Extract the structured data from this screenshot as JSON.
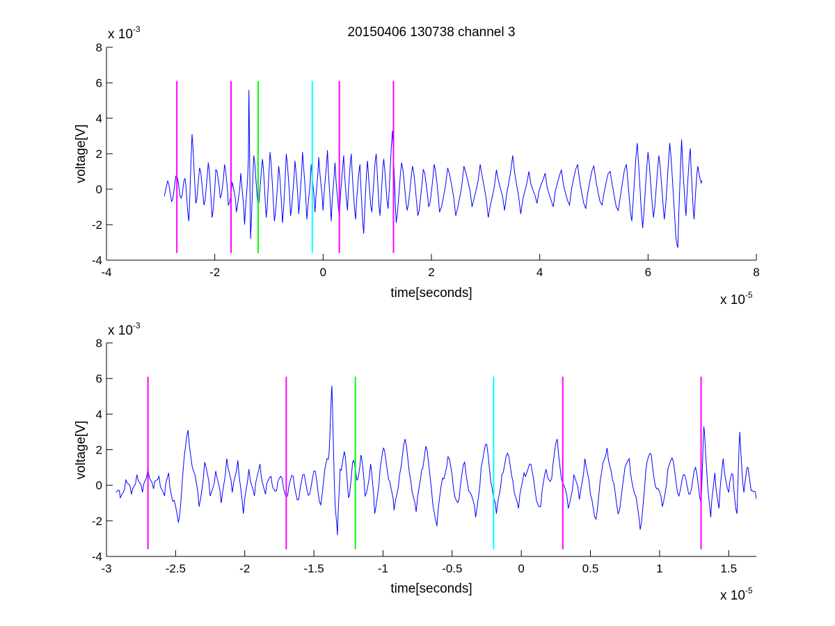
{
  "chart_data": [
    {
      "type": "line",
      "title": "20150406 130738 channel 3",
      "xlabel": "time[seconds]",
      "ylabel": "voltage[V]",
      "x_multiplier_label": "x 10",
      "x_multiplier_exp": "-5",
      "y_multiplier_label": "x 10",
      "y_multiplier_exp": "-3",
      "xlim": [
        -4,
        8
      ],
      "ylim": [
        -4,
        8
      ],
      "xticks": [
        -4,
        -2,
        0,
        2,
        4,
        6,
        8
      ],
      "xtick_labels": [
        "-4",
        "-2",
        "0",
        "2",
        "4",
        "6",
        "8"
      ],
      "yticks": [
        -4,
        -2,
        0,
        2,
        4,
        6,
        8
      ],
      "ytick_labels": [
        "-4",
        "-2",
        "0",
        "2",
        "4",
        "6",
        "8"
      ],
      "grid": false,
      "series": [
        {
          "color": "#0000ff",
          "x_start": -2.93,
          "x_end": 7.0,
          "points": [
            [
              -2.93,
              -0.4
            ],
            [
              -2.85,
              0.3
            ],
            [
              -2.78,
              -0.6
            ],
            [
              -2.7,
              0.8
            ],
            [
              -2.62,
              -0.5
            ],
            [
              -2.55,
              0.6
            ],
            [
              -2.48,
              -1.8
            ],
            [
              -2.42,
              3.1
            ],
            [
              -2.35,
              -0.8
            ],
            [
              -2.28,
              1.2
            ],
            [
              -2.2,
              -0.9
            ],
            [
              -2.12,
              1.5
            ],
            [
              -2.05,
              -1.6
            ],
            [
              -1.98,
              1.1
            ],
            [
              -1.9,
              -0.5
            ],
            [
              -1.82,
              1.4
            ],
            [
              -1.75,
              -0.9
            ],
            [
              -1.68,
              0.4
            ],
            [
              -1.6,
              -1.3
            ],
            [
              -1.52,
              0.9
            ],
            [
              -1.45,
              -2.0
            ],
            [
              -1.38,
              1.6
            ],
            [
              -1.37,
              5.6
            ],
            [
              -1.34,
              -2.8
            ],
            [
              -1.28,
              1.9
            ],
            [
              -1.2,
              -1.0
            ],
            [
              -1.12,
              1.7
            ],
            [
              -1.05,
              -1.6
            ],
            [
              -0.98,
              2.1
            ],
            [
              -0.9,
              -1.8
            ],
            [
              -0.82,
              1.3
            ],
            [
              -0.75,
              -1.9
            ],
            [
              -0.68,
              2.0
            ],
            [
              -0.6,
              -1.5
            ],
            [
              -0.52,
              1.6
            ],
            [
              -0.45,
              -1.4
            ],
            [
              -0.38,
              2.1
            ],
            [
              -0.3,
              -1.7
            ],
            [
              -0.22,
              1.4
            ],
            [
              -0.15,
              -1.3
            ],
            [
              -0.08,
              1.8
            ],
            [
              0.0,
              -1.2
            ],
            [
              0.08,
              2.2
            ],
            [
              0.15,
              -1.8
            ],
            [
              0.22,
              1.5
            ],
            [
              0.3,
              -1.6
            ],
            [
              0.38,
              1.9
            ],
            [
              0.45,
              -1.2
            ],
            [
              0.52,
              2.0
            ],
            [
              0.6,
              -1.7
            ],
            [
              0.68,
              1.4
            ],
            [
              0.75,
              -2.5
            ],
            [
              0.82,
              1.6
            ],
            [
              0.9,
              -1.3
            ],
            [
              0.98,
              2.0
            ],
            [
              1.05,
              -1.5
            ],
            [
              1.12,
              1.7
            ],
            [
              1.2,
              -1.1
            ],
            [
              1.28,
              3.3
            ],
            [
              1.35,
              -1.9
            ],
            [
              1.45,
              1.5
            ],
            [
              1.55,
              -1.2
            ],
            [
              1.65,
              1.3
            ],
            [
              1.75,
              -1.5
            ],
            [
              1.85,
              1.1
            ],
            [
              1.95,
              -1.0
            ],
            [
              2.05,
              1.4
            ],
            [
              2.15,
              -1.3
            ],
            [
              2.3,
              1.2
            ],
            [
              2.45,
              -1.5
            ],
            [
              2.6,
              1.3
            ],
            [
              2.75,
              -1.0
            ],
            [
              2.9,
              1.4
            ],
            [
              3.05,
              -1.6
            ],
            [
              3.2,
              1.1
            ],
            [
              3.35,
              -1.2
            ],
            [
              3.5,
              1.9
            ],
            [
              3.65,
              -1.4
            ],
            [
              3.8,
              1.0
            ],
            [
              3.95,
              -0.8
            ],
            [
              4.1,
              0.9
            ],
            [
              4.25,
              -1.0
            ],
            [
              4.4,
              1.1
            ],
            [
              4.55,
              -0.9
            ],
            [
              4.7,
              1.4
            ],
            [
              4.85,
              -1.1
            ],
            [
              5.0,
              1.3
            ],
            [
              5.15,
              -0.9
            ],
            [
              5.3,
              1.0
            ],
            [
              5.45,
              -1.2
            ],
            [
              5.6,
              1.4
            ],
            [
              5.7,
              -1.8
            ],
            [
              5.8,
              2.6
            ],
            [
              5.9,
              -2.2
            ],
            [
              6.0,
              2.1
            ],
            [
              6.1,
              -1.6
            ],
            [
              6.2,
              1.9
            ],
            [
              6.3,
              -1.7
            ],
            [
              6.4,
              2.6
            ],
            [
              6.5,
              -2.0
            ],
            [
              6.55,
              -3.3
            ],
            [
              6.62,
              2.8
            ],
            [
              6.7,
              -1.5
            ],
            [
              6.78,
              2.3
            ],
            [
              6.85,
              -1.7
            ],
            [
              6.92,
              1.3
            ],
            [
              7.0,
              0.5
            ]
          ]
        }
      ],
      "vlines": [
        {
          "x": -2.7,
          "y_range": [
            -3.6,
            6.1
          ],
          "color": "#ff00ff"
        },
        {
          "x": -1.7,
          "y_range": [
            -3.6,
            6.1
          ],
          "color": "#ff00ff"
        },
        {
          "x": -1.2,
          "y_range": [
            -3.6,
            6.1
          ],
          "color": "#00ff00"
        },
        {
          "x": -0.2,
          "y_range": [
            -3.6,
            6.1
          ],
          "color": "#00ffff"
        },
        {
          "x": 0.3,
          "y_range": [
            -3.6,
            6.1
          ],
          "color": "#ff00ff"
        },
        {
          "x": 1.3,
          "y_range": [
            -3.6,
            6.1
          ],
          "color": "#ff00ff"
        }
      ]
    },
    {
      "type": "line",
      "title": "",
      "xlabel": "time[seconds]",
      "ylabel": "voltage[V]",
      "x_multiplier_label": "x 10",
      "x_multiplier_exp": "-5",
      "y_multiplier_label": "x 10",
      "y_multiplier_exp": "-3",
      "xlim": [
        -3.0,
        1.7
      ],
      "ylim": [
        -4,
        8
      ],
      "xticks": [
        -3,
        -2.5,
        -2,
        -1.5,
        -1,
        -0.5,
        0,
        0.5,
        1,
        1.5
      ],
      "xtick_labels": [
        "-3",
        "-2.5",
        "-2",
        "-1.5",
        "-1",
        "-0.5",
        "0",
        "0.5",
        "1",
        "1.5"
      ],
      "yticks": [
        -4,
        -2,
        0,
        2,
        4,
        6,
        8
      ],
      "ytick_labels": [
        "-4",
        "-2",
        "0",
        "2",
        "4",
        "6",
        "8"
      ],
      "grid": false,
      "series": [
        {
          "color": "#0000ff",
          "points": [
            [
              -2.93,
              -0.4
            ],
            [
              -2.9,
              -0.7
            ],
            [
              -2.86,
              0.3
            ],
            [
              -2.82,
              -0.5
            ],
            [
              -2.78,
              0.6
            ],
            [
              -2.74,
              -0.4
            ],
            [
              -2.7,
              0.9
            ],
            [
              -2.66,
              -0.2
            ],
            [
              -2.62,
              0.5
            ],
            [
              -2.58,
              -0.6
            ],
            [
              -2.55,
              0.7
            ],
            [
              -2.52,
              -0.9
            ],
            [
              -2.48,
              -2.1
            ],
            [
              -2.45,
              0.4
            ],
            [
              -2.41,
              3.1
            ],
            [
              -2.37,
              0.8
            ],
            [
              -2.33,
              -1.2
            ],
            [
              -2.29,
              1.3
            ],
            [
              -2.25,
              -0.6
            ],
            [
              -2.21,
              0.8
            ],
            [
              -2.17,
              -1.0
            ],
            [
              -2.13,
              1.5
            ],
            [
              -2.09,
              -0.4
            ],
            [
              -2.05,
              1.4
            ],
            [
              -2.01,
              -1.6
            ],
            [
              -1.97,
              0.9
            ],
            [
              -1.93,
              -0.6
            ],
            [
              -1.89,
              1.2
            ],
            [
              -1.85,
              -0.5
            ],
            [
              -1.81,
              0.5
            ],
            [
              -1.77,
              -0.3
            ],
            [
              -1.73,
              0.4
            ],
            [
              -1.69,
              -0.6
            ],
            [
              -1.65,
              0.5
            ],
            [
              -1.61,
              -0.8
            ],
            [
              -1.57,
              0.6
            ],
            [
              -1.53,
              -0.5
            ],
            [
              -1.49,
              0.8
            ],
            [
              -1.45,
              -1.1
            ],
            [
              -1.41,
              1.3
            ],
            [
              -1.39,
              1.8
            ],
            [
              -1.37,
              5.6
            ],
            [
              -1.35,
              -0.4
            ],
            [
              -1.33,
              -2.8
            ],
            [
              -1.31,
              0.9
            ],
            [
              -1.28,
              1.9
            ],
            [
              -1.25,
              -0.7
            ],
            [
              -1.22,
              1.3
            ],
            [
              -1.19,
              0.3
            ],
            [
              -1.16,
              1.7
            ],
            [
              -1.13,
              -0.6
            ],
            [
              -1.09,
              1.2
            ],
            [
              -1.06,
              -1.6
            ],
            [
              -1.02,
              1.0
            ],
            [
              -0.99,
              2.0
            ],
            [
              -0.95,
              0.2
            ],
            [
              -0.92,
              -1.4
            ],
            [
              -0.88,
              0.6
            ],
            [
              -0.84,
              2.6
            ],
            [
              -0.8,
              0.3
            ],
            [
              -0.76,
              -1.5
            ],
            [
              -0.72,
              0.9
            ],
            [
              -0.69,
              2.2
            ],
            [
              -0.65,
              -0.2
            ],
            [
              -0.61,
              -2.3
            ],
            [
              -0.57,
              0.4
            ],
            [
              -0.53,
              1.6
            ],
            [
              -0.49,
              -0.2
            ],
            [
              -0.45,
              -0.8
            ],
            [
              -0.41,
              1.3
            ],
            [
              -0.37,
              -0.4
            ],
            [
              -0.33,
              -1.8
            ],
            [
              -0.29,
              1.0
            ],
            [
              -0.25,
              2.3
            ],
            [
              -0.21,
              -0.2
            ],
            [
              -0.18,
              -1.6
            ],
            [
              -0.14,
              0.6
            ],
            [
              -0.1,
              1.8
            ],
            [
              -0.06,
              0.2
            ],
            [
              -0.02,
              -1.3
            ],
            [
              0.02,
              0.7
            ],
            [
              0.06,
              1.2
            ],
            [
              0.1,
              -0.3
            ],
            [
              0.14,
              -1.2
            ],
            [
              0.18,
              0.9
            ],
            [
              0.22,
              0.4
            ],
            [
              0.26,
              2.6
            ],
            [
              0.3,
              0.1
            ],
            [
              0.34,
              -1.3
            ],
            [
              0.38,
              0.6
            ],
            [
              0.42,
              -0.8
            ],
            [
              0.46,
              1.5
            ],
            [
              0.5,
              -0.5
            ],
            [
              0.54,
              -1.9
            ],
            [
              0.58,
              0.7
            ],
            [
              0.62,
              2.1
            ],
            [
              0.66,
              0.3
            ],
            [
              0.7,
              -1.6
            ],
            [
              0.74,
              0.4
            ],
            [
              0.78,
              1.5
            ],
            [
              0.82,
              -0.5
            ],
            [
              0.86,
              -2.5
            ],
            [
              0.9,
              0.8
            ],
            [
              0.94,
              1.7
            ],
            [
              0.98,
              -0.2
            ],
            [
              1.02,
              -1.2
            ],
            [
              1.06,
              0.9
            ],
            [
              1.1,
              1.3
            ],
            [
              1.14,
              -0.6
            ],
            [
              1.18,
              0.6
            ],
            [
              1.22,
              -0.5
            ],
            [
              1.26,
              1.0
            ],
            [
              1.3,
              -1.0
            ],
            [
              1.32,
              3.3
            ],
            [
              1.34,
              0.9
            ],
            [
              1.37,
              -1.8
            ],
            [
              1.4,
              0.7
            ],
            [
              1.43,
              -1.3
            ],
            [
              1.46,
              1.5
            ],
            [
              1.5,
              -0.4
            ],
            [
              1.53,
              0.6
            ],
            [
              1.56,
              -1.6
            ],
            [
              1.58,
              3.0
            ],
            [
              1.61,
              -0.4
            ],
            [
              1.64,
              1.0
            ],
            [
              1.67,
              -0.3
            ],
            [
              1.7,
              -0.8
            ]
          ]
        }
      ],
      "vlines": [
        {
          "x": -2.7,
          "y_range": [
            -3.6,
            6.1
          ],
          "color": "#ff00ff"
        },
        {
          "x": -1.7,
          "y_range": [
            -3.6,
            6.1
          ],
          "color": "#ff00ff"
        },
        {
          "x": -1.2,
          "y_range": [
            -3.6,
            6.1
          ],
          "color": "#00ff00"
        },
        {
          "x": -0.2,
          "y_range": [
            -3.6,
            6.1
          ],
          "color": "#00ffff"
        },
        {
          "x": 0.3,
          "y_range": [
            -3.6,
            6.1
          ],
          "color": "#ff00ff"
        },
        {
          "x": 1.3,
          "y_range": [
            -3.6,
            6.1
          ],
          "color": "#ff00ff"
        }
      ]
    }
  ]
}
